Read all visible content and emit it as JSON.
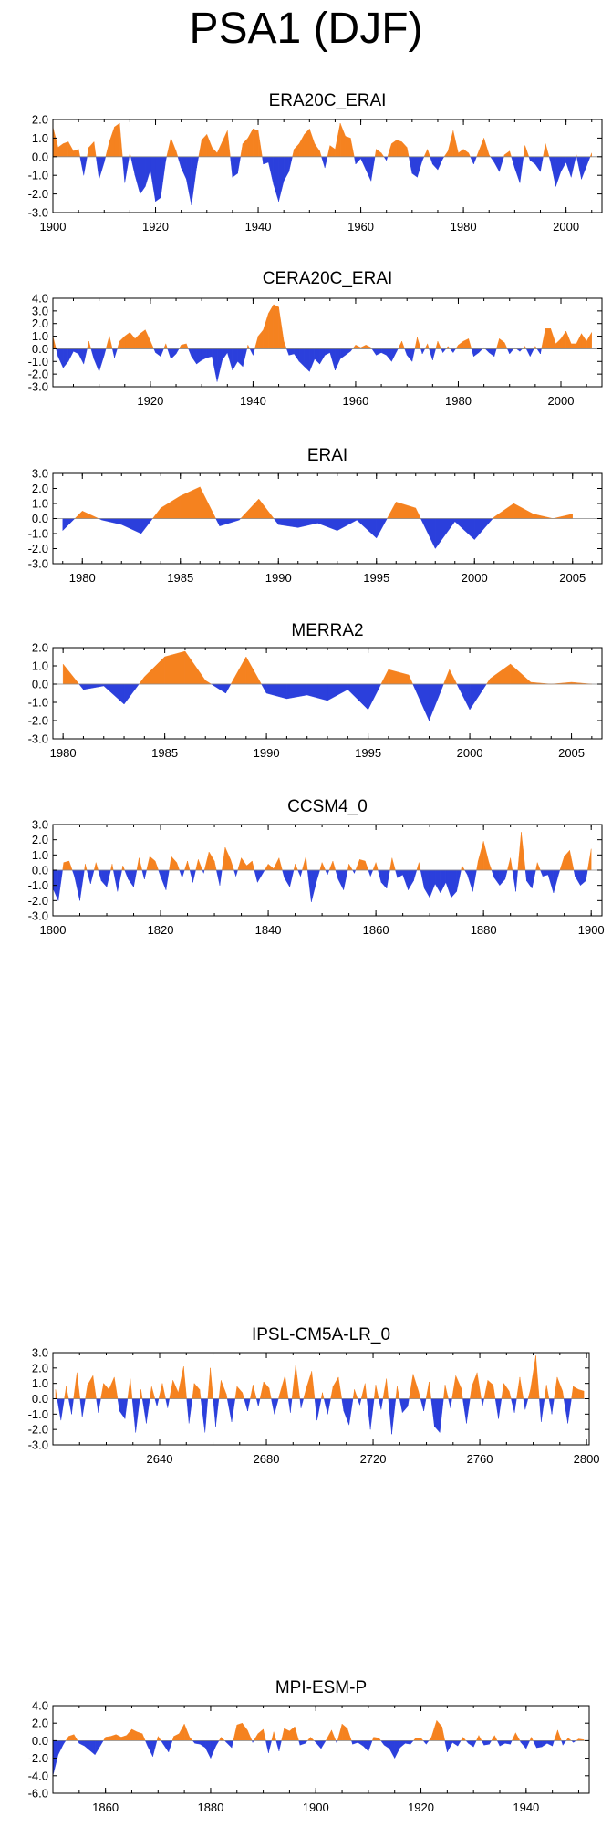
{
  "main_title": "PSA1 (DJF)",
  "colors": {
    "positive": "#f5821f",
    "negative": "#2b3fdc",
    "zero_line": "#888888"
  },
  "chart_data": [
    {
      "type": "area",
      "title": "ERA20C_ERAI",
      "xlim": [
        1900,
        2007
      ],
      "ylim": [
        -3.0,
        2.0
      ],
      "yticks": [
        2.0,
        1.0,
        0.0,
        -1.0,
        -2.0,
        -3.0
      ],
      "yticklabels": [
        "2.0",
        "1.0",
        "0.0",
        "-1.0",
        "-2.0",
        "-3.0"
      ],
      "xticks": [
        1900,
        1920,
        1940,
        1960,
        1980,
        2000
      ],
      "x": [
        1900,
        1901,
        1902,
        1903,
        1904,
        1905,
        1906,
        1907,
        1908,
        1909,
        1910,
        1911,
        1912,
        1913,
        1914,
        1915,
        1916,
        1917,
        1918,
        1919,
        1920,
        1921,
        1922,
        1923,
        1924,
        1925,
        1926,
        1927,
        1928,
        1929,
        1930,
        1931,
        1932,
        1933,
        1934,
        1935,
        1936,
        1937,
        1938,
        1939,
        1940,
        1941,
        1942,
        1943,
        1944,
        1945,
        1946,
        1947,
        1948,
        1949,
        1950,
        1951,
        1952,
        1953,
        1954,
        1955,
        1956,
        1957,
        1958,
        1959,
        1960,
        1961,
        1962,
        1963,
        1964,
        1965,
        1966,
        1967,
        1968,
        1969,
        1970,
        1971,
        1972,
        1973,
        1974,
        1975,
        1976,
        1977,
        1978,
        1979,
        1980,
        1981,
        1982,
        1983,
        1984,
        1985,
        1986,
        1987,
        1988,
        1989,
        1990,
        1991,
        1992,
        1993,
        1994,
        1995,
        1996,
        1997,
        1998,
        1999,
        2000,
        2001,
        2002,
        2003,
        2004,
        2005
      ],
      "values": [
        1.6,
        0.5,
        0.7,
        0.8,
        0.3,
        0.4,
        -1.0,
        0.5,
        0.8,
        -1.2,
        -0.3,
        0.8,
        1.6,
        1.8,
        -1.4,
        0.2,
        -1.0,
        -2.0,
        -1.6,
        -0.7,
        -2.4,
        -2.2,
        -0.2,
        1.0,
        0.3,
        -0.6,
        -1.2,
        -2.6,
        -0.6,
        0.9,
        1.2,
        0.5,
        0.2,
        0.8,
        1.4,
        -1.1,
        -0.9,
        0.7,
        1.0,
        1.5,
        1.4,
        -0.4,
        -0.3,
        -1.5,
        -2.4,
        -1.3,
        -0.8,
        0.4,
        0.7,
        1.2,
        1.5,
        0.7,
        0.3,
        -0.6,
        0.6,
        0.4,
        1.8,
        1.1,
        1.0,
        -0.4,
        -0.1,
        -0.7,
        -1.3,
        0.4,
        0.2,
        -0.2,
        0.7,
        0.9,
        0.8,
        0.5,
        -0.9,
        -1.1,
        -0.2,
        0.4,
        -0.4,
        -0.7,
        -0.1,
        0.3,
        1.4,
        0.2,
        0.4,
        0.2,
        -0.4,
        0.3,
        1.0,
        0.1,
        -0.3,
        -0.8,
        0.1,
        0.3,
        -0.6,
        -1.4,
        0.6,
        -0.2,
        -0.4,
        -0.8,
        0.7,
        -0.3,
        -1.6,
        -0.8,
        -0.3,
        -1.1,
        0.1,
        -1.2,
        -0.5,
        0.2
      ]
    },
    {
      "type": "area",
      "title": "CERA20C_ERAI",
      "xlim": [
        1901,
        2008
      ],
      "ylim": [
        -3.0,
        4.0
      ],
      "yticks": [
        4.0,
        3.0,
        2.0,
        1.0,
        0.0,
        -1.0,
        -2.0,
        -3.0
      ],
      "yticklabels": [
        "4.0",
        "3.0",
        "2.0",
        "1.0",
        "0.0",
        "-1.0",
        "-2.0",
        "-3.0"
      ],
      "xticks": [
        1920,
        1940,
        1960,
        1980,
        2000
      ],
      "x": [
        1901,
        1902,
        1903,
        1904,
        1905,
        1906,
        1907,
        1908,
        1909,
        1910,
        1911,
        1912,
        1913,
        1914,
        1915,
        1916,
        1917,
        1918,
        1919,
        1920,
        1921,
        1922,
        1923,
        1924,
        1925,
        1926,
        1927,
        1928,
        1929,
        1930,
        1931,
        1932,
        1933,
        1934,
        1935,
        1936,
        1937,
        1938,
        1939,
        1940,
        1941,
        1942,
        1943,
        1944,
        1945,
        1946,
        1947,
        1948,
        1949,
        1950,
        1951,
        1952,
        1953,
        1954,
        1955,
        1956,
        1957,
        1958,
        1959,
        1960,
        1961,
        1962,
        1963,
        1964,
        1965,
        1966,
        1967,
        1968,
        1969,
        1970,
        1971,
        1972,
        1973,
        1974,
        1975,
        1976,
        1977,
        1978,
        1979,
        1980,
        1981,
        1982,
        1983,
        1984,
        1985,
        1986,
        1987,
        1988,
        1989,
        1990,
        1991,
        1992,
        1993,
        1994,
        1995,
        1996,
        1997,
        1998,
        1999,
        2000,
        2001,
        2002,
        2003,
        2004,
        2005,
        2006
      ],
      "values": [
        1.0,
        -0.6,
        -1.5,
        -1.0,
        -0.2,
        -0.4,
        -1.2,
        0.6,
        -0.8,
        -1.8,
        -0.5,
        1.0,
        -0.7,
        0.6,
        1.0,
        1.3,
        0.8,
        1.2,
        1.5,
        0.6,
        -0.3,
        -0.6,
        0.4,
        -0.8,
        -0.4,
        0.3,
        0.4,
        -0.6,
        -1.2,
        -0.9,
        -0.7,
        -0.6,
        -2.6,
        -0.9,
        -0.3,
        -1.7,
        -1.0,
        -1.4,
        0.3,
        -0.5,
        1.0,
        1.5,
        2.8,
        3.5,
        3.3,
        0.6,
        -0.5,
        -0.4,
        -1.0,
        -1.4,
        -1.8,
        -0.8,
        -1.2,
        -0.5,
        -0.3,
        -1.7,
        -0.8,
        -0.5,
        -0.2,
        0.3,
        0.1,
        0.3,
        0.1,
        -0.5,
        -0.3,
        -0.5,
        -1.0,
        -0.2,
        0.6,
        -0.5,
        -1.0,
        0.9,
        -0.4,
        0.4,
        -0.9,
        0.6,
        -0.3,
        0.2,
        -0.3,
        0.3,
        0.6,
        0.8,
        -0.6,
        -0.3,
        0.1,
        -0.3,
        -0.6,
        0.8,
        0.5,
        -0.4,
        0.1,
        -0.2,
        0.2,
        -0.6,
        0.2,
        -0.4,
        1.6,
        1.6,
        0.4,
        0.8,
        1.4,
        0.4,
        0.4,
        1.2,
        0.6,
        1.3
      ]
    },
    {
      "type": "area",
      "title": "ERAI",
      "xlim": [
        1978.5,
        2006.5
      ],
      "ylim": [
        -3.0,
        3.0
      ],
      "yticks": [
        3.0,
        2.0,
        1.0,
        0.0,
        -1.0,
        -2.0,
        -3.0
      ],
      "yticklabels": [
        "3.0",
        "2.0",
        "1.0",
        "0.0",
        "-1.0",
        "-2.0",
        "-3.0"
      ],
      "xticks": [
        1980,
        1985,
        1990,
        1995,
        2000,
        2005
      ],
      "x": [
        1979,
        1980,
        1981,
        1982,
        1983,
        1984,
        1985,
        1986,
        1987,
        1988,
        1989,
        1990,
        1991,
        1992,
        1993,
        1994,
        1995,
        1996,
        1997,
        1998,
        1999,
        2000,
        2001,
        2002,
        2003,
        2004,
        2005
      ],
      "values": [
        -0.8,
        0.5,
        -0.1,
        -0.4,
        -1.0,
        0.7,
        1.5,
        2.1,
        -0.5,
        -0.1,
        1.3,
        -0.4,
        -0.6,
        -0.3,
        -0.8,
        -0.1,
        -1.3,
        1.1,
        0.7,
        -2.0,
        -0.2,
        -1.4,
        0.1,
        1.0,
        0.3,
        0.0,
        0.3
      ]
    },
    {
      "type": "area",
      "title": "MERRA2",
      "xlim": [
        1979.5,
        2006.5
      ],
      "ylim": [
        -3.0,
        2.0
      ],
      "yticks": [
        2.0,
        1.0,
        0.0,
        -1.0,
        -2.0,
        -3.0
      ],
      "yticklabels": [
        "2.0",
        "1.0",
        "0.0",
        "-1.0",
        "-2.0",
        "-3.0"
      ],
      "xticks": [
        1980,
        1985,
        1990,
        1995,
        2000,
        2005
      ],
      "x": [
        1980,
        1981,
        1982,
        1983,
        1984,
        1985,
        1986,
        1987,
        1988,
        1989,
        1990,
        1991,
        1992,
        1993,
        1994,
        1995,
        1996,
        1997,
        1998,
        1999,
        2000,
        2001,
        2002,
        2003,
        2004,
        2005,
        2006
      ],
      "values": [
        1.1,
        -0.3,
        -0.1,
        -1.1,
        0.4,
        1.5,
        1.8,
        0.2,
        -0.5,
        1.5,
        -0.5,
        -0.8,
        -0.6,
        -0.9,
        -0.3,
        -1.4,
        0.8,
        0.5,
        -2.0,
        0.8,
        -1.4,
        0.3,
        1.1,
        0.1,
        0.0,
        0.1,
        0.0
      ]
    },
    {
      "type": "area",
      "title": "CCSM4_0",
      "xlim": [
        1800,
        1902
      ],
      "ylim": [
        -3.0,
        3.0
      ],
      "yticks": [
        3.0,
        2.0,
        1.0,
        0.0,
        -1.0,
        -2.0,
        -3.0
      ],
      "yticklabels": [
        "3.0",
        "2.0",
        "1.0",
        "0.0",
        "-1.0",
        "-2.0",
        "-3.0"
      ],
      "xticks": [
        1800,
        1820,
        1840,
        1860,
        1880,
        1900
      ],
      "x": [
        1800,
        1801,
        1802,
        1803,
        1804,
        1805,
        1806,
        1807,
        1808,
        1809,
        1810,
        1811,
        1812,
        1813,
        1814,
        1815,
        1816,
        1817,
        1818,
        1819,
        1820,
        1821,
        1822,
        1823,
        1824,
        1825,
        1826,
        1827,
        1828,
        1829,
        1830,
        1831,
        1832,
        1833,
        1834,
        1835,
        1836,
        1837,
        1838,
        1839,
        1840,
        1841,
        1842,
        1843,
        1844,
        1845,
        1846,
        1847,
        1848,
        1849,
        1850,
        1851,
        1852,
        1853,
        1854,
        1855,
        1856,
        1857,
        1858,
        1859,
        1860,
        1861,
        1862,
        1863,
        1864,
        1865,
        1866,
        1867,
        1868,
        1869,
        1870,
        1871,
        1872,
        1873,
        1874,
        1875,
        1876,
        1877,
        1878,
        1879,
        1880,
        1881,
        1882,
        1883,
        1884,
        1885,
        1886,
        1887,
        1888,
        1889,
        1890,
        1891,
        1892,
        1893,
        1894,
        1895,
        1896,
        1897,
        1898,
        1899,
        1900
      ],
      "values": [
        -1.2,
        -2.0,
        0.5,
        0.6,
        -0.4,
        -2.0,
        0.4,
        -0.9,
        0.5,
        -0.7,
        -1.1,
        0.4,
        -1.4,
        0.3,
        -0.6,
        -1.1,
        0.8,
        -0.6,
        0.9,
        0.6,
        -0.4,
        -1.3,
        0.9,
        0.5,
        -0.5,
        0.6,
        -0.8,
        0.7,
        -0.2,
        1.2,
        0.6,
        -1.0,
        1.5,
        0.7,
        -0.4,
        0.8,
        0.3,
        0.6,
        -0.8,
        -0.2,
        0.4,
        0.1,
        0.8,
        -0.5,
        -1.1,
        0.4,
        -0.4,
        0.9,
        -2.1,
        -0.7,
        0.5,
        -0.3,
        0.6,
        -0.6,
        -1.3,
        0.4,
        -0.2,
        0.7,
        0.6,
        -0.4,
        0.5,
        -0.8,
        -1.2,
        0.8,
        -0.5,
        -0.3,
        -1.3,
        -0.7,
        0.5,
        -1.2,
        -1.8,
        -0.9,
        -1.5,
        -0.8,
        -1.8,
        -1.4,
        0.3,
        -0.3,
        -1.4,
        0.6,
        1.9,
        0.5,
        -0.5,
        -1.0,
        -0.6,
        0.8,
        -1.4,
        2.5,
        -0.7,
        -1.2,
        0.5,
        -0.4,
        -0.3,
        -1.5,
        -0.2,
        0.9,
        1.3,
        -0.4,
        -1.0,
        -0.7,
        1.4
      ]
    },
    {
      "type": "area",
      "title": "IPSL-CM5A-LR_0",
      "xlim": [
        2600,
        2801
      ],
      "ylim": [
        -3.0,
        3.0
      ],
      "yticks": [
        3.0,
        2.0,
        1.0,
        0.0,
        -1.0,
        -2.0,
        -3.0
      ],
      "yticklabels": [
        "3.0",
        "2.0",
        "1.0",
        "0.0",
        "-1.0",
        "-2.0",
        "-3.0"
      ],
      "xticks": [
        2640,
        2680,
        2720,
        2760,
        2800
      ],
      "x": [
        2601,
        2603,
        2605,
        2607,
        2609,
        2611,
        2613,
        2615,
        2617,
        2619,
        2621,
        2623,
        2625,
        2627,
        2629,
        2631,
        2633,
        2635,
        2637,
        2639,
        2641,
        2643,
        2645,
        2647,
        2649,
        2651,
        2653,
        2655,
        2657,
        2659,
        2661,
        2663,
        2665,
        2667,
        2669,
        2671,
        2673,
        2675,
        2677,
        2679,
        2681,
        2683,
        2685,
        2687,
        2689,
        2691,
        2693,
        2695,
        2697,
        2699,
        2701,
        2703,
        2705,
        2707,
        2709,
        2711,
        2713,
        2715,
        2717,
        2719,
        2721,
        2723,
        2725,
        2727,
        2729,
        2731,
        2733,
        2735,
        2737,
        2739,
        2741,
        2743,
        2745,
        2747,
        2749,
        2751,
        2753,
        2755,
        2757,
        2759,
        2761,
        2763,
        2765,
        2767,
        2769,
        2771,
        2773,
        2775,
        2777,
        2779,
        2781,
        2783,
        2785,
        2787,
        2789,
        2791,
        2793,
        2795,
        2797,
        2799
      ],
      "values": [
        0.6,
        -1.4,
        0.8,
        -1.0,
        1.7,
        -1.2,
        0.9,
        1.5,
        -0.9,
        1.0,
        0.6,
        1.4,
        -0.8,
        -1.3,
        1.3,
        -2.2,
        0.6,
        -1.6,
        0.8,
        -0.5,
        1.0,
        -0.6,
        1.2,
        0.4,
        2.1,
        -1.6,
        1.0,
        0.6,
        -2.2,
        2.0,
        -1.8,
        1.2,
        0.3,
        -1.5,
        0.8,
        0.4,
        -0.8,
        0.9,
        -0.5,
        1.1,
        0.7,
        -1.0,
        0.3,
        1.5,
        -0.9,
        2.2,
        -0.6,
        0.7,
        1.8,
        -1.4,
        0.4,
        -1.0,
        0.8,
        1.4,
        -0.8,
        -1.7,
        0.6,
        -0.4,
        1.0,
        -2.0,
        0.9,
        -0.7,
        1.3,
        -2.3,
        0.8,
        -0.9,
        -0.5,
        1.6,
        0.5,
        -0.8,
        1.1,
        -1.8,
        -2.2,
        0.9,
        -0.6,
        1.5,
        0.7,
        -1.6,
        0.8,
        1.7,
        -0.5,
        1.2,
        0.9,
        -1.3,
        1.0,
        0.5,
        -0.9,
        1.4,
        -0.7,
        0.6,
        2.8,
        -1.5,
        0.9,
        -1.0,
        1.4,
        0.5,
        -1.6,
        0.8,
        0.6,
        0.5
      ]
    },
    {
      "type": "area",
      "title": "MPI-ESM-P",
      "xlim": [
        1850,
        1952
      ],
      "ylim": [
        -6.0,
        4.0
      ],
      "yticks": [
        4.0,
        2.0,
        0.0,
        -2.0,
        -4.0,
        -6.0
      ],
      "yticklabels": [
        "4.0",
        "2.0",
        "0.0",
        "-2.0",
        "-4.0",
        "-6.0"
      ],
      "xticks": [
        1860,
        1880,
        1900,
        1920,
        1940
      ],
      "x": [
        1850,
        1851,
        1852,
        1853,
        1854,
        1855,
        1856,
        1857,
        1858,
        1859,
        1860,
        1861,
        1862,
        1863,
        1864,
        1865,
        1866,
        1867,
        1868,
        1869,
        1870,
        1871,
        1872,
        1873,
        1874,
        1875,
        1876,
        1877,
        1878,
        1879,
        1880,
        1881,
        1882,
        1883,
        1884,
        1885,
        1886,
        1887,
        1888,
        1889,
        1890,
        1891,
        1892,
        1893,
        1894,
        1895,
        1896,
        1897,
        1898,
        1899,
        1900,
        1901,
        1902,
        1903,
        1904,
        1905,
        1906,
        1907,
        1908,
        1909,
        1910,
        1911,
        1912,
        1913,
        1914,
        1915,
        1916,
        1917,
        1918,
        1919,
        1920,
        1921,
        1922,
        1923,
        1924,
        1925,
        1926,
        1927,
        1928,
        1929,
        1930,
        1931,
        1932,
        1933,
        1934,
        1935,
        1936,
        1937,
        1938,
        1939,
        1940,
        1941,
        1942,
        1943,
        1944,
        1945,
        1946,
        1947,
        1948,
        1949,
        1950,
        1951
      ],
      "values": [
        -4.0,
        -1.6,
        -0.4,
        0.5,
        0.7,
        -0.3,
        -0.6,
        -1.1,
        -1.6,
        -0.6,
        0.4,
        0.5,
        0.7,
        0.4,
        0.6,
        1.3,
        1.0,
        0.8,
        -0.6,
        -1.8,
        0.5,
        -0.4,
        -1.3,
        0.5,
        0.8,
        1.9,
        0.4,
        -0.3,
        -0.4,
        -0.8,
        -2.0,
        -0.6,
        0.4,
        -0.2,
        -0.8,
        1.8,
        2.0,
        1.2,
        -0.2,
        0.8,
        1.3,
        -1.4,
        1.0,
        -1.2,
        1.4,
        1.1,
        1.6,
        -0.5,
        -0.3,
        0.4,
        -0.2,
        -0.9,
        0.1,
        1.2,
        -0.3,
        1.9,
        1.4,
        -0.4,
        -0.2,
        -0.6,
        -1.2,
        0.4,
        0.3,
        -0.5,
        -0.9,
        -2.0,
        -0.8,
        -0.3,
        -0.4,
        0.3,
        0.3,
        -0.4,
        0.4,
        2.3,
        1.6,
        -1.3,
        -0.2,
        -0.6,
        0.4,
        -0.3,
        -0.7,
        0.6,
        -0.5,
        -0.4,
        0.6,
        -0.6,
        -0.3,
        -0.4,
        0.9,
        -0.2,
        -0.9,
        0.4,
        -0.8,
        -0.7,
        -0.3,
        -0.6,
        1.2,
        -0.5,
        0.3,
        -0.2,
        0.2,
        0.1
      ]
    }
  ]
}
